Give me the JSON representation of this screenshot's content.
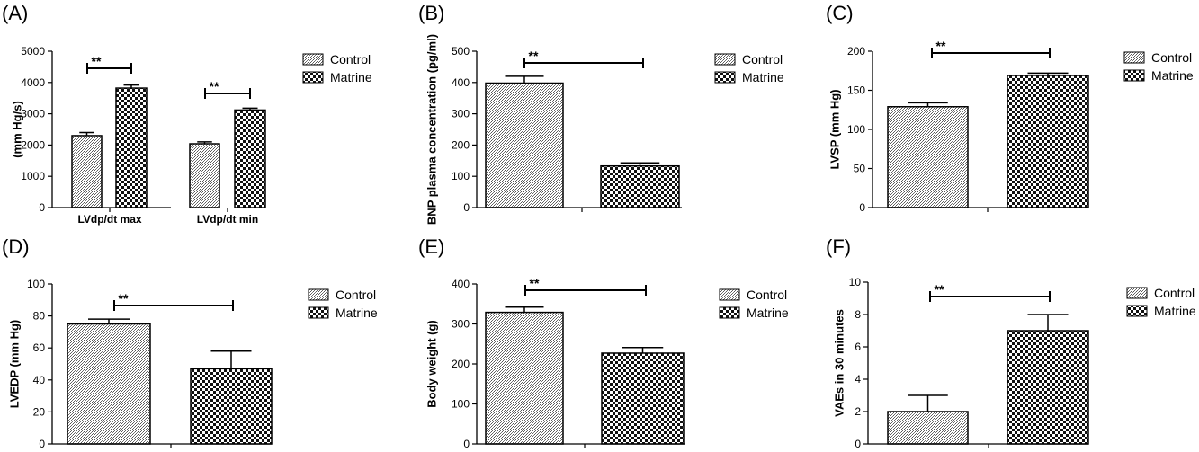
{
  "chart_data": [
    {
      "panel": "(A)",
      "type": "bar",
      "ylabel": "(mm Hg/s)",
      "xlabel": "",
      "ylim": [
        0,
        5000
      ],
      "yticks": [
        0,
        1000,
        2000,
        3000,
        4000,
        5000
      ],
      "categories": [
        "LVdp/dt max",
        "LVdp/dt min"
      ],
      "series": [
        {
          "name": "Control",
          "values": [
            2300,
            2040
          ],
          "errors": [
            100,
            60
          ]
        },
        {
          "name": "Matrine",
          "values": [
            3820,
            3120
          ],
          "errors": [
            100,
            60
          ]
        }
      ],
      "significance": [
        "**",
        "**"
      ],
      "legend": [
        "Control",
        "Matrine"
      ],
      "legend_position": "right"
    },
    {
      "panel": "(B)",
      "type": "bar",
      "ylabel": "BNP plasma concentration (pg/ml)",
      "xlabel": "",
      "ylim": [
        0,
        500
      ],
      "yticks": [
        0,
        100,
        200,
        300,
        400,
        500
      ],
      "categories": [
        ""
      ],
      "series": [
        {
          "name": "Control",
          "values": [
            398
          ],
          "errors": [
            22
          ]
        },
        {
          "name": "Matrine",
          "values": [
            133
          ],
          "errors": [
            10
          ]
        }
      ],
      "significance": [
        "**"
      ],
      "legend": [
        "Control",
        "Matrine"
      ],
      "legend_position": "right"
    },
    {
      "panel": "(C)",
      "type": "bar",
      "ylabel": "LVSP (mm Hg)",
      "xlabel": "",
      "ylim": [
        0,
        200
      ],
      "yticks": [
        0,
        50,
        100,
        150,
        200
      ],
      "categories": [
        ""
      ],
      "series": [
        {
          "name": "Control",
          "values": [
            129
          ],
          "errors": [
            5
          ]
        },
        {
          "name": "Matrine",
          "values": [
            169
          ],
          "errors": [
            3
          ]
        }
      ],
      "significance": [
        "**"
      ],
      "legend": [
        "Control",
        "Matrine"
      ],
      "legend_position": "right"
    },
    {
      "panel": "(D)",
      "type": "bar",
      "ylabel": "LVEDP (mm Hg)",
      "xlabel": "",
      "ylim": [
        0,
        100
      ],
      "yticks": [
        0,
        20,
        40,
        60,
        80,
        100
      ],
      "categories": [
        ""
      ],
      "series": [
        {
          "name": "Control",
          "values": [
            75
          ],
          "errors": [
            3
          ]
        },
        {
          "name": "Matrine",
          "values": [
            47
          ],
          "errors": [
            11
          ]
        }
      ],
      "significance": [
        "**"
      ],
      "legend": [
        "Control",
        "Matrine"
      ],
      "legend_position": "right"
    },
    {
      "panel": "(E)",
      "type": "bar",
      "ylabel": "Body weight (g)",
      "xlabel": "",
      "ylim": [
        0,
        400
      ],
      "yticks": [
        0,
        100,
        200,
        300,
        400
      ],
      "categories": [
        ""
      ],
      "series": [
        {
          "name": "Control",
          "values": [
            329
          ],
          "errors": [
            13
          ]
        },
        {
          "name": "Matrine",
          "values": [
            227
          ],
          "errors": [
            14
          ]
        }
      ],
      "significance": [
        "**"
      ],
      "legend": [
        "Control",
        "Matrine"
      ],
      "legend_position": "right"
    },
    {
      "panel": "(F)",
      "type": "bar",
      "ylabel": "VAEs in 30 minutes",
      "xlabel": "",
      "ylim": [
        0,
        10
      ],
      "yticks": [
        0,
        2,
        4,
        6,
        8,
        10
      ],
      "categories": [
        ""
      ],
      "series": [
        {
          "name": "Control",
          "values": [
            2
          ],
          "errors": [
            1
          ]
        },
        {
          "name": "Matrine",
          "values": [
            7
          ],
          "errors": [
            1
          ]
        }
      ],
      "significance": [
        "**"
      ],
      "legend": [
        "Control",
        "Matrine"
      ],
      "legend_position": "right"
    }
  ]
}
